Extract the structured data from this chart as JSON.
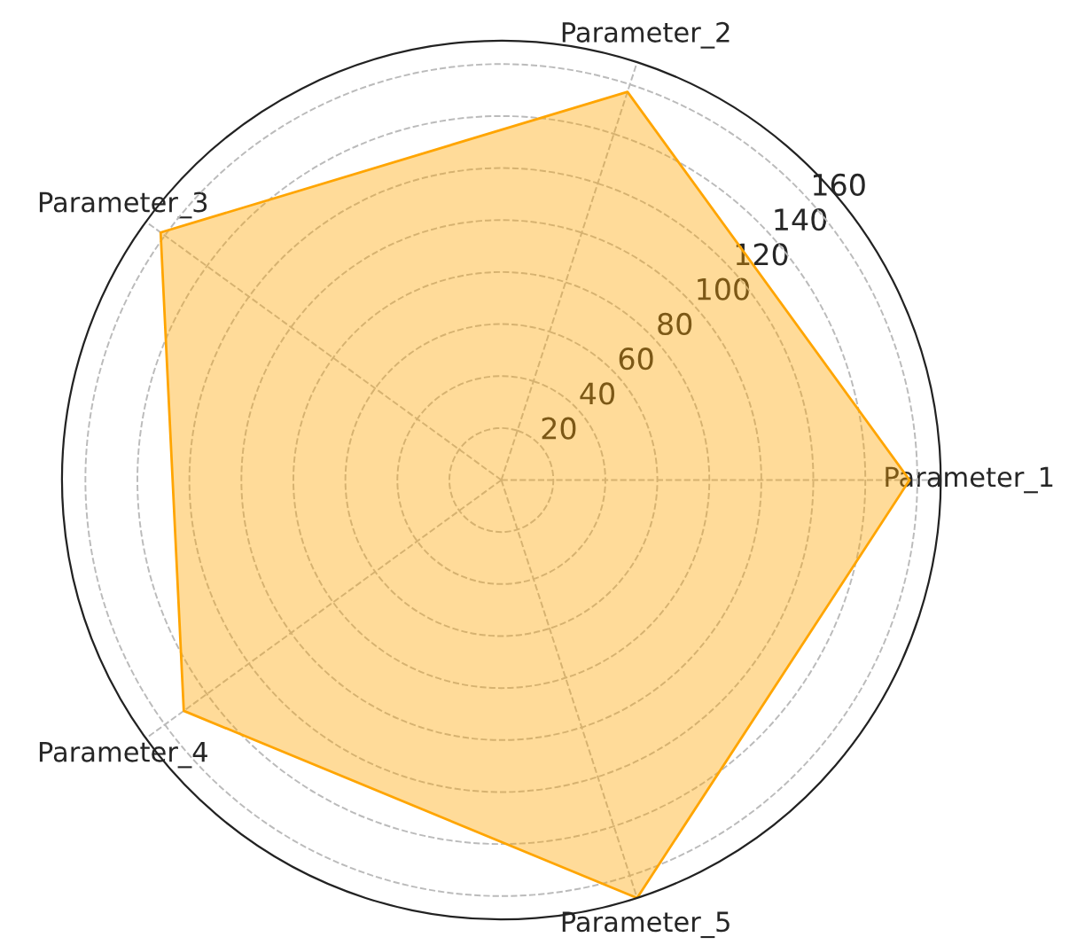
{
  "chart_data": {
    "type": "radar",
    "categories": [
      "Parameter_2",
      "Parameter_1",
      "Parameter_5",
      "Parameter_4",
      "Parameter_3"
    ],
    "series": [
      {
        "color": "#ffa500",
        "values": [
          157,
          157,
          169,
          151,
          162
        ]
      }
    ],
    "ylim": [
      0,
      169
    ],
    "yticks": [
      20,
      40,
      60,
      80,
      100,
      120,
      140,
      160
    ],
    "grid": true,
    "legend": false
  }
}
